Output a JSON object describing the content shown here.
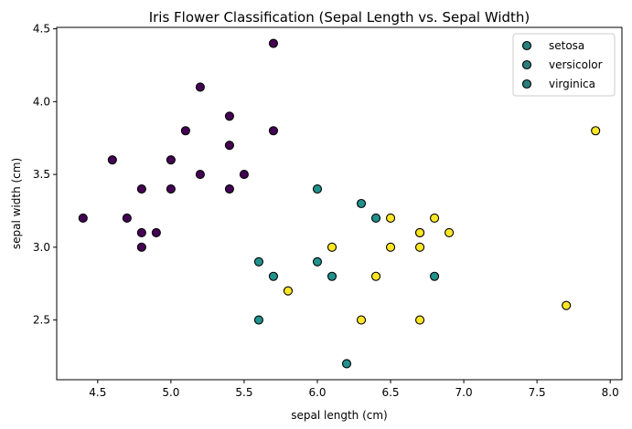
{
  "chart_data": {
    "type": "scatter",
    "title": "Iris Flower Classification (Sepal Length vs. Sepal Width)",
    "xlabel": "sepal length (cm)",
    "ylabel": "sepal width (cm)",
    "xlim": [
      4.22,
      8.08
    ],
    "ylim": [
      2.09,
      4.51
    ],
    "xticks": [
      "4.5",
      "5.0",
      "5.5",
      "6.0",
      "6.5",
      "7.0",
      "7.5",
      "8.0"
    ],
    "yticks": [
      "2.5",
      "3.0",
      "3.5",
      "4.0",
      "4.5"
    ],
    "grid": false,
    "legend_position": "top-right",
    "legend_marker_color": "#2a7f7c",
    "marker_edge_color": "#000000",
    "series": [
      {
        "name": "setosa",
        "color": "#440154",
        "points": [
          [
            4.4,
            3.2
          ],
          [
            4.6,
            3.6
          ],
          [
            4.7,
            3.2
          ],
          [
            4.8,
            3.4
          ],
          [
            4.8,
            3.1
          ],
          [
            4.8,
            3.0
          ],
          [
            4.9,
            3.1
          ],
          [
            5.0,
            3.6
          ],
          [
            5.0,
            3.4
          ],
          [
            5.1,
            3.8
          ],
          [
            5.2,
            4.1
          ],
          [
            5.2,
            3.5
          ],
          [
            5.4,
            3.9
          ],
          [
            5.4,
            3.7
          ],
          [
            5.4,
            3.4
          ],
          [
            5.5,
            3.5
          ],
          [
            5.7,
            4.4
          ],
          [
            5.7,
            3.8
          ]
        ]
      },
      {
        "name": "versicolor",
        "color": "#21918c",
        "points": [
          [
            5.6,
            2.9
          ],
          [
            5.6,
            2.5
          ],
          [
            5.7,
            2.8
          ],
          [
            6.0,
            3.4
          ],
          [
            6.0,
            2.9
          ],
          [
            6.1,
            2.8
          ],
          [
            6.2,
            2.2
          ],
          [
            6.3,
            3.3
          ],
          [
            6.4,
            3.2
          ],
          [
            6.7,
            3.1
          ],
          [
            6.8,
            2.8
          ]
        ]
      },
      {
        "name": "virginica",
        "color": "#fde725",
        "points": [
          [
            5.8,
            2.7
          ],
          [
            6.1,
            3.0
          ],
          [
            6.3,
            2.5
          ],
          [
            6.4,
            2.8
          ],
          [
            6.5,
            3.2
          ],
          [
            6.5,
            3.0
          ],
          [
            6.7,
            3.1
          ],
          [
            6.7,
            3.0
          ],
          [
            6.7,
            2.5
          ],
          [
            6.8,
            3.2
          ],
          [
            6.9,
            3.1
          ],
          [
            7.7,
            2.6
          ],
          [
            7.9,
            3.8
          ]
        ]
      }
    ]
  }
}
